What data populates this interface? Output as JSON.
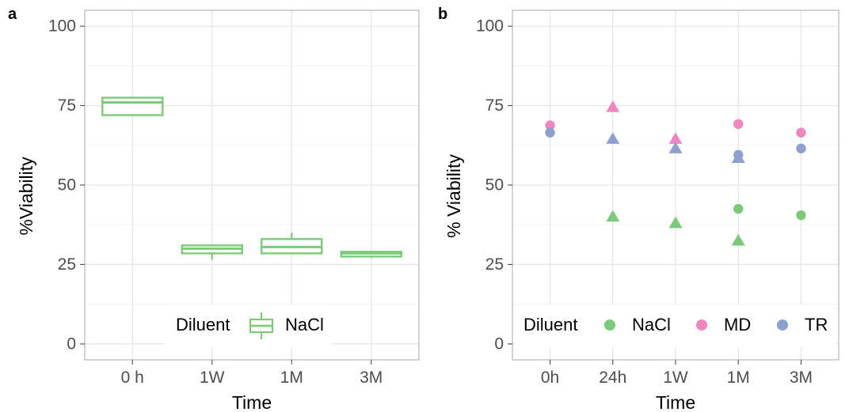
{
  "colors": {
    "NaCl": "#7cc97a",
    "MD": "#ee86c0",
    "TR": "#8ea0cf"
  },
  "chart_data": [
    {
      "panel": "a",
      "type": "box",
      "xlabel": "Time",
      "ylabel": "%Viability",
      "categories": [
        "0 h",
        "1W",
        "1M",
        "3M"
      ],
      "ylim": [
        -5,
        105
      ],
      "yticks": [
        0,
        25,
        50,
        75,
        100
      ],
      "grid": true,
      "legend": {
        "title": "Diluent",
        "entries": [
          "NaCl"
        ],
        "position": "bottom"
      },
      "series": [
        {
          "name": "NaCl",
          "boxes": [
            {
              "category": "0 h",
              "min": 72,
              "q1": 72,
              "median": 76,
              "q3": 77.5,
              "max": 77.5
            },
            {
              "category": "1W",
              "min": 26.5,
              "q1": 28.5,
              "median": 30,
              "q3": 31,
              "max": 31
            },
            {
              "category": "1M",
              "min": 28.5,
              "q1": 28.5,
              "median": 30.5,
              "q3": 33,
              "max": 35
            },
            {
              "category": "3M",
              "min": 27,
              "q1": 27.5,
              "median": 28.5,
              "q3": 29,
              "max": 29
            }
          ]
        }
      ]
    },
    {
      "panel": "b",
      "type": "scatter",
      "xlabel": "Time",
      "ylabel": "% Viability",
      "categories": [
        "0h",
        "24h",
        "1W",
        "1M",
        "3M"
      ],
      "ylim": [
        -5,
        105
      ],
      "yticks": [
        0,
        25,
        50,
        75,
        100
      ],
      "grid": true,
      "legend": {
        "title": "Diluent",
        "entries": [
          "NaCl",
          "MD",
          "TR"
        ],
        "position": "bottom"
      },
      "series": [
        {
          "name": "NaCl",
          "circles": [
            {
              "x": "1M",
              "y": 42.5
            },
            {
              "x": "3M",
              "y": 40.5
            }
          ],
          "triangles": [
            {
              "x": "24h",
              "y": 40
            },
            {
              "x": "1W",
              "y": 38
            },
            {
              "x": "1M",
              "y": 32.5
            }
          ]
        },
        {
          "name": "MD",
          "circles": [
            {
              "x": "0h",
              "y": 68.8
            },
            {
              "x": "1M",
              "y": 69.2
            },
            {
              "x": "3M",
              "y": 66.5
            }
          ],
          "triangles": [
            {
              "x": "24h",
              "y": 74.5
            },
            {
              "x": "1W",
              "y": 64.5
            }
          ]
        },
        {
          "name": "TR",
          "circles": [
            {
              "x": "0h",
              "y": 66.5
            },
            {
              "x": "1M",
              "y": 59.5
            },
            {
              "x": "3M",
              "y": 61.5
            }
          ],
          "triangles": [
            {
              "x": "24h",
              "y": 64.5
            },
            {
              "x": "1W",
              "y": 61.5
            },
            {
              "x": "1M",
              "y": 58.5
            }
          ]
        }
      ]
    }
  ]
}
